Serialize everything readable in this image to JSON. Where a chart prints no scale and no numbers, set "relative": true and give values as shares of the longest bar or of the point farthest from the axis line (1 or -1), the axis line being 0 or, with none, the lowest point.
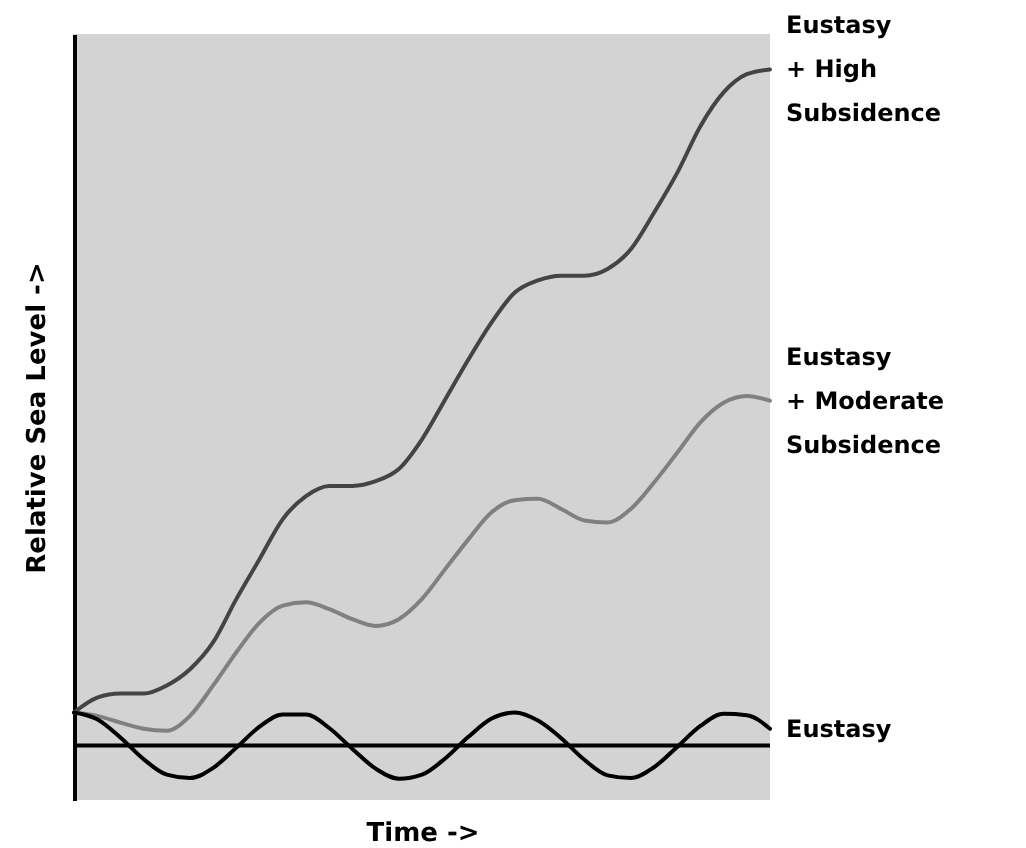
{
  "chart_data": {
    "type": "line",
    "relative": true,
    "xlabel": "Time ->",
    "ylabel": "Relative Sea Level ->",
    "tick_labels": false,
    "line_style": "solid",
    "marker": "none",
    "categories": [
      null,
      null,
      null,
      null,
      null,
      null,
      null,
      null,
      null,
      null,
      null,
      null,
      null,
      null,
      null,
      null,
      null,
      null,
      null,
      null,
      null,
      null,
      null,
      null,
      null,
      null,
      null,
      null,
      null,
      null,
      null
    ],
    "series": [
      {
        "name": "Eustasy\n+ High\nSubsidence",
        "color": "#444444",
        "values": [
          0.049,
          0.071,
          0.077,
          0.077,
          0.089,
          0.113,
          0.153,
          0.217,
          0.276,
          0.335,
          0.369,
          0.384,
          0.384,
          0.391,
          0.409,
          0.453,
          0.512,
          0.571,
          0.626,
          0.67,
          0.688,
          0.695,
          0.695,
          0.705,
          0.734,
          0.788,
          0.847,
          0.916,
          0.966,
          0.993,
          1.0
        ]
      },
      {
        "name": "Eustasy\n+ Moderate\nSubsidence",
        "color": "#808080",
        "values": [
          0.049,
          0.044,
          0.034,
          0.025,
          0.022,
          0.044,
          0.089,
          0.138,
          0.182,
          0.207,
          0.212,
          0.202,
          0.187,
          0.177,
          0.187,
          0.217,
          0.261,
          0.305,
          0.345,
          0.363,
          0.365,
          0.35,
          0.333,
          0.33,
          0.35,
          0.389,
          0.433,
          0.478,
          0.507,
          0.517,
          0.51
        ]
      },
      {
        "name": "Eustasy",
        "color": "#000000",
        "values": [
          0.049,
          0.039,
          0.012,
          -0.02,
          -0.043,
          -0.048,
          -0.033,
          -0.003,
          0.028,
          0.046,
          0.046,
          0.026,
          -0.005,
          -0.034,
          -0.049,
          -0.043,
          -0.019,
          0.013,
          0.04,
          0.049,
          0.037,
          0.011,
          -0.021,
          -0.044,
          -0.048,
          -0.032,
          -0.002,
          0.029,
          0.047,
          0.045,
          0.025
        ]
      }
    ]
  }
}
